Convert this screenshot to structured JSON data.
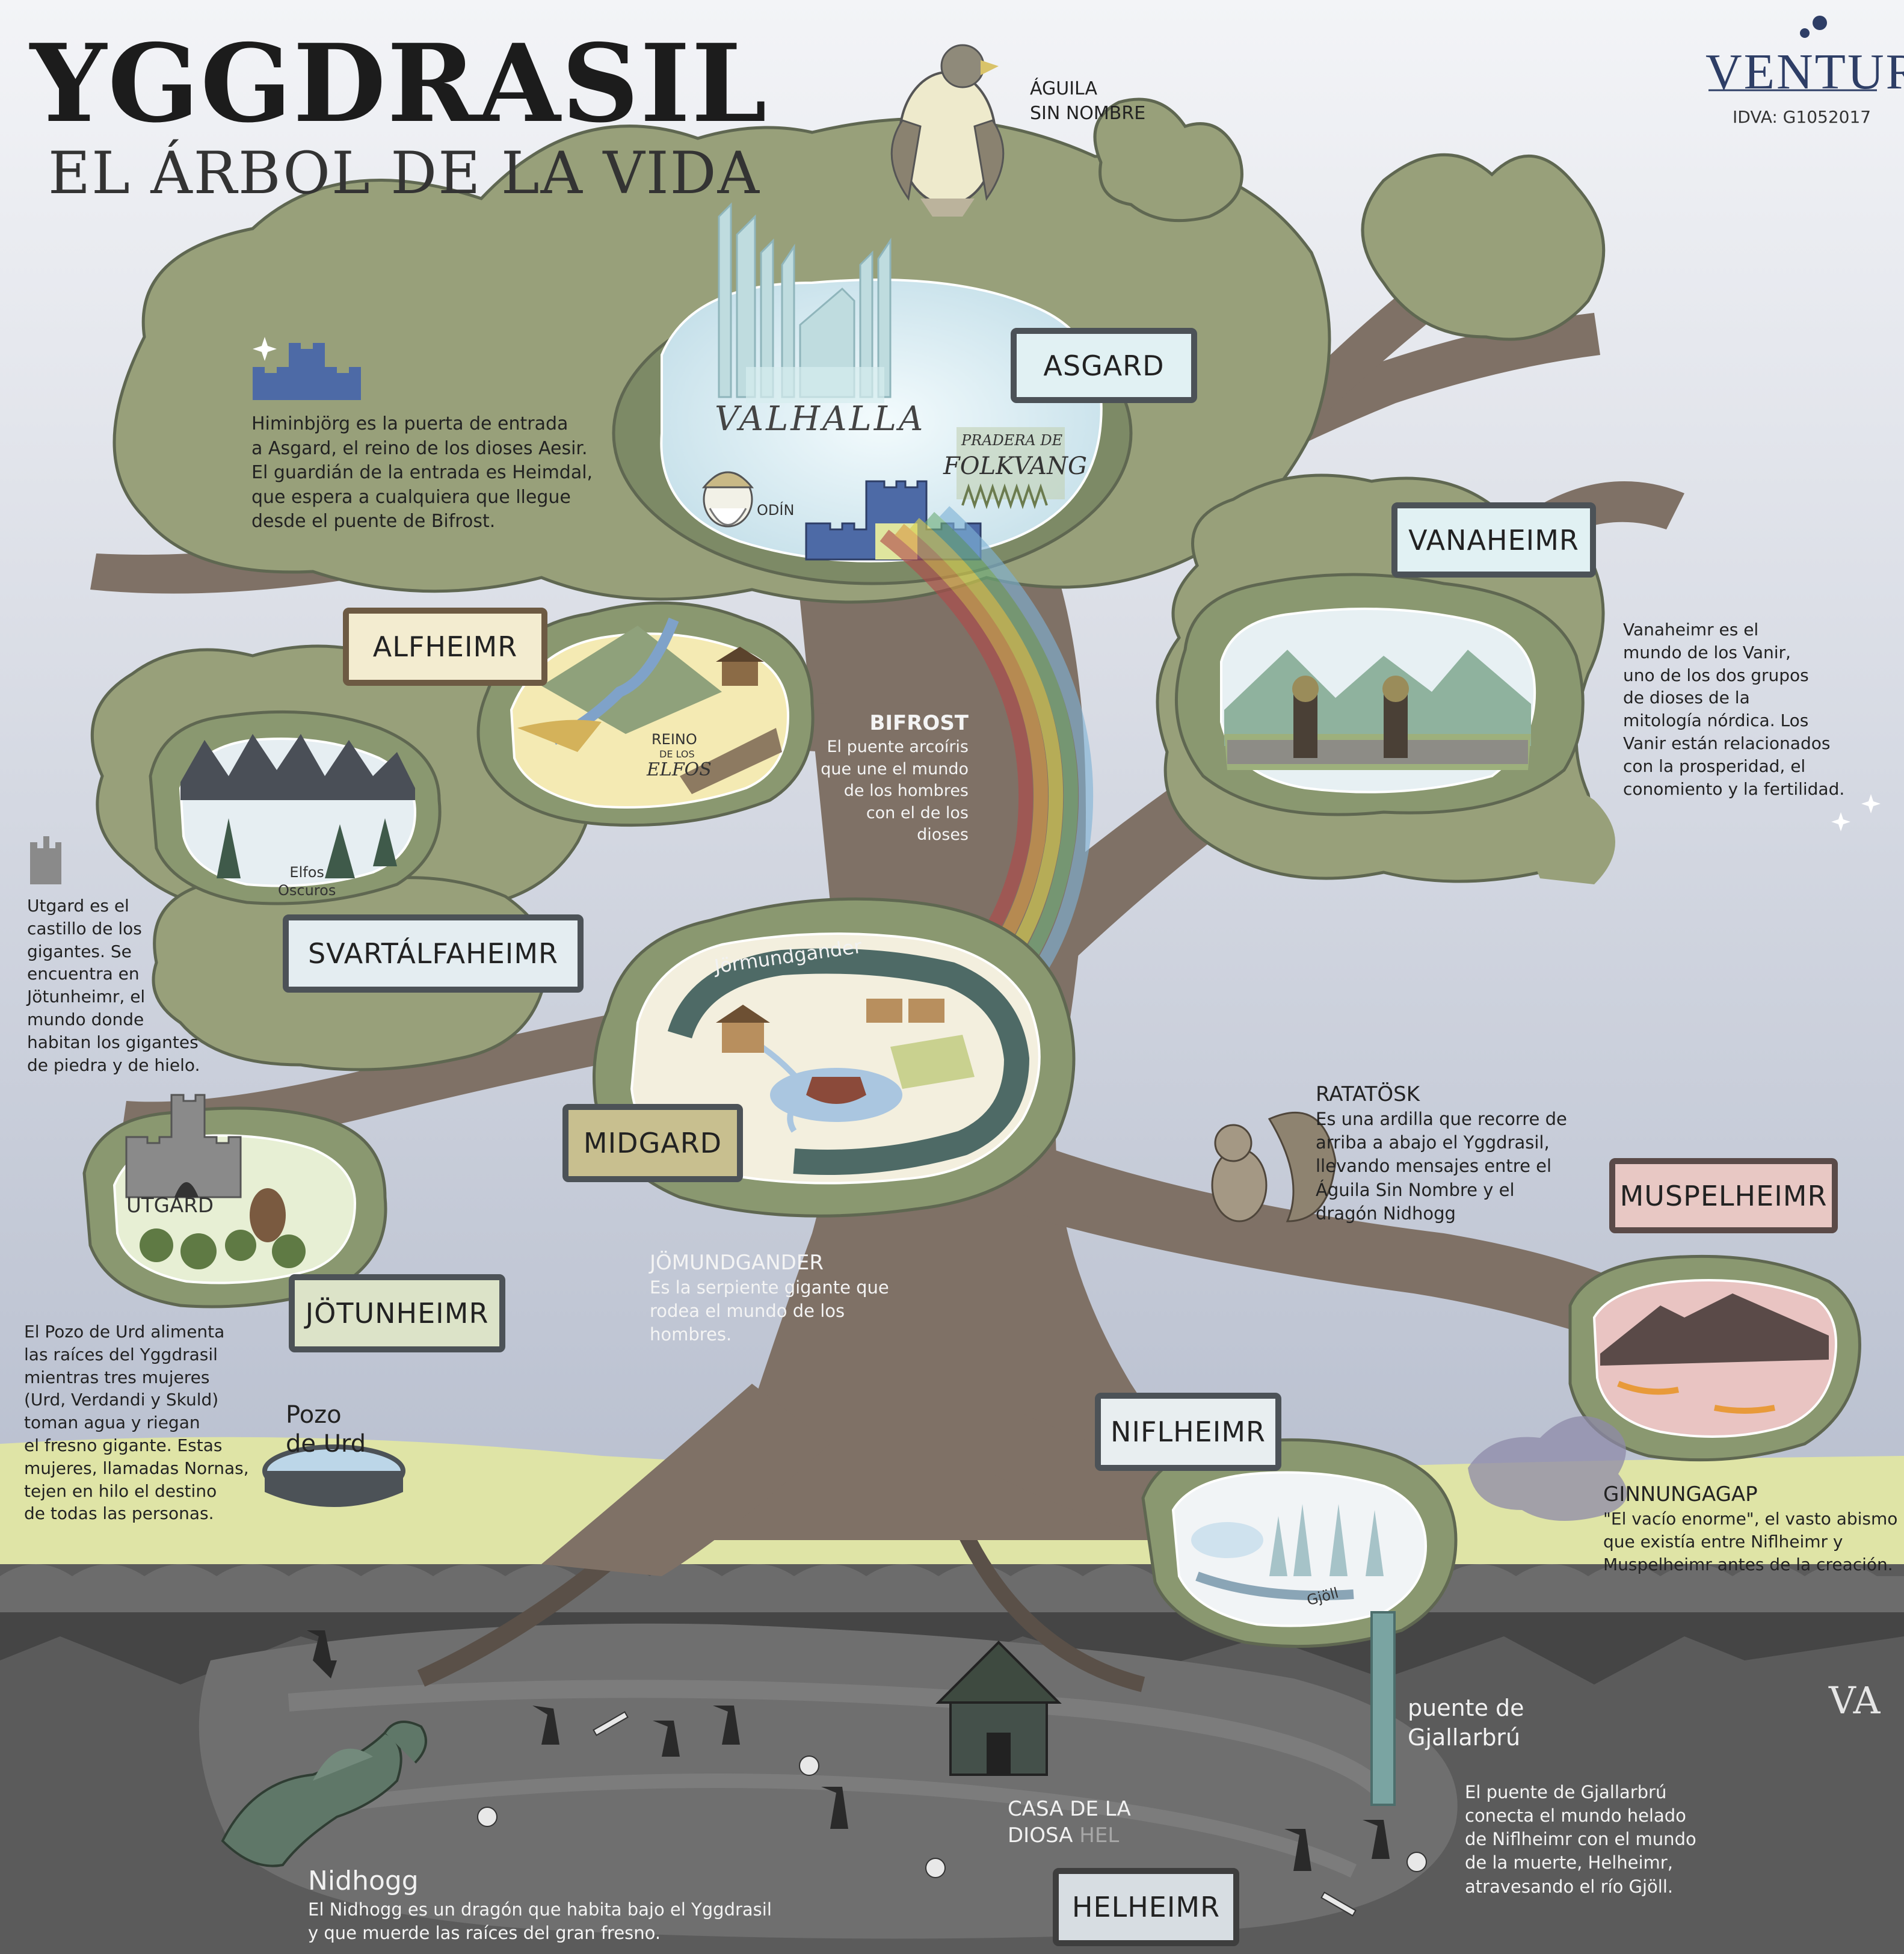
{
  "header": {
    "title": "YGGDRASIL",
    "subtitle": "EL ÁRBOL DE LA VIDA",
    "logo": "VENTURA",
    "code": "IDVA: G1052017",
    "corner_logo": "VA"
  },
  "eagle": {
    "label_line1": "ÁGUILA",
    "label_line2": "SIN NOMBRE"
  },
  "realms": {
    "asgard": "ASGARD",
    "vanaheimr": "VANAHEIMR",
    "alfheimr": "ALFHEIMR",
    "svartalfaheimr": "SVARTÁLFAHEIMR",
    "midgard": "MIDGARD",
    "jotunheimr": "JÖTUNHEIMR",
    "muspelheimr": "MUSPELHEIMR",
    "niflheimr": "NIFLHEIMR",
    "helheimr": "HELHEIMR"
  },
  "places": {
    "valhalla": "VALHALLA",
    "pradera": "PRADERA DE",
    "folkvang": "FOLKVANG",
    "odin": "ODÍN",
    "reino": "REINO",
    "de_los": "DE LOS",
    "elfos": "ELFOS",
    "elfos_oscuros_1": "Elfos",
    "elfos_oscuros_2": "Oscuros",
    "jormundgander": "Jörmundgander",
    "utgard": "UTGARD",
    "pozo_1": "Pozo",
    "pozo_2": "de Urd",
    "gjoll": "Gjöll",
    "casa_1": "CASA DE LA",
    "casa_2a": "DIOSA",
    "casa_2b": "HEL",
    "puente_1": "puente de",
    "puente_2": "Gjallarbrú"
  },
  "texts": {
    "himinbjorg": [
      "Himinbjörg es la puerta de entrada",
      "a Asgard, el reino de los dioses Aesir.",
      "El guardián de la entrada es Heimdal,",
      "que espera a cualquiera que llegue",
      "desde el puente de Bifrost."
    ],
    "vanaheimr": [
      "Vanaheimr es el",
      "mundo de los Vanir,",
      "uno de los dos grupos",
      "de dioses de la",
      "mitología nórdica. Los",
      "Vanir están relacionados",
      "con la prosperidad, el",
      "conomiento y la fertilidad."
    ],
    "bifrost_title": "BIFROST",
    "bifrost": [
      "El puente arcoíris",
      "que une el mundo",
      "de los hombres",
      "con el de los",
      "dioses"
    ],
    "utgard": [
      "Utgard es el",
      "castillo de los",
      "gigantes. Se",
      "encuentra en",
      "Jötunheimr, el",
      "mundo donde",
      "habitan los gigantes",
      "de piedra y de hielo."
    ],
    "ratatosk_title": "RATATÖSK",
    "ratatosk": [
      "Es una ardilla que recorre de",
      "arriba a abajo el Yggdrasil,",
      "llevando mensajes entre el",
      "Águila Sin Nombre y el",
      "dragón Nidhogg"
    ],
    "jomundgander_title": "JÖMUNDGANDER",
    "jomundgander": [
      "Es la serpiente gigante que",
      "rodea el mundo de los",
      "hombres."
    ],
    "pozo": [
      "El Pozo de Urd alimenta",
      "las raíces del Yggdrasil",
      "mientras tres mujeres",
      "(Urd, Verdandi y Skuld)",
      "toman agua y riegan",
      "el fresno gigante. Estas",
      "mujeres, llamadas Nornas,",
      "tejen en hilo el destino",
      "de todas las personas."
    ],
    "ginnungagap_title": "GINNUNGAGAP",
    "ginnungagap": [
      "\"El vacío enorme\", el vasto abismo",
      "que existía entre Niflheimr y",
      "Muspelheimr antes de la creación."
    ],
    "gjallarbru": [
      "El puente de Gjallarbrú",
      "conecta el mundo helado",
      "de Niflheimr con el mundo",
      "de la muerte, Helheimr,",
      "atravesando el río Gjöll."
    ],
    "nidhogg_title": "Nidhogg",
    "nidhogg": [
      "El Nidhogg es un dragón que habita bajo el Yggdrasil",
      "y que muerde las raíces del gran fresno."
    ]
  },
  "colors": {
    "sky_top": "#f2f3f6",
    "sky_bottom": "#b9c0cf",
    "foliage": "#98a07a",
    "trunk": "#7f7166",
    "grass": "#dfe4a6",
    "underground": "#5b5b5b",
    "plate_border": "#4c5257"
  },
  "icons": [
    "eagle-icon",
    "castle-icon",
    "squirrel-icon",
    "dragon-icon",
    "skull-icon",
    "bone-icon",
    "house-icon",
    "rainbow-icon",
    "serpent-icon",
    "ship-icon",
    "volcano-icon",
    "star-icon"
  ]
}
